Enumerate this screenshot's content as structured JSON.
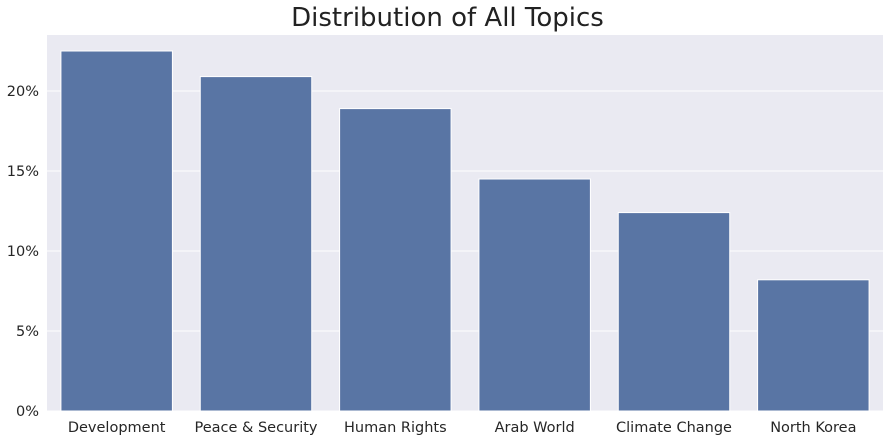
{
  "chart_data": {
    "type": "bar",
    "title": "Distribution of All Topics",
    "xlabel": "",
    "ylabel": "",
    "categories": [
      "Development",
      "Peace & Security",
      "Human Rights",
      "Arab World",
      "Climate Change",
      "North Korea"
    ],
    "values": [
      22.5,
      20.9,
      18.9,
      14.5,
      12.4,
      8.2
    ],
    "ylim": [
      0,
      23.5
    ],
    "yticks": [
      0,
      5,
      10,
      15,
      20
    ],
    "ytick_labels": [
      "0%",
      "5%",
      "10%",
      "15%",
      "20%"
    ],
    "grid": true,
    "bar_color": "#5975a4",
    "background_color": "#eaeaf2",
    "grid_color": "#ffffff"
  }
}
